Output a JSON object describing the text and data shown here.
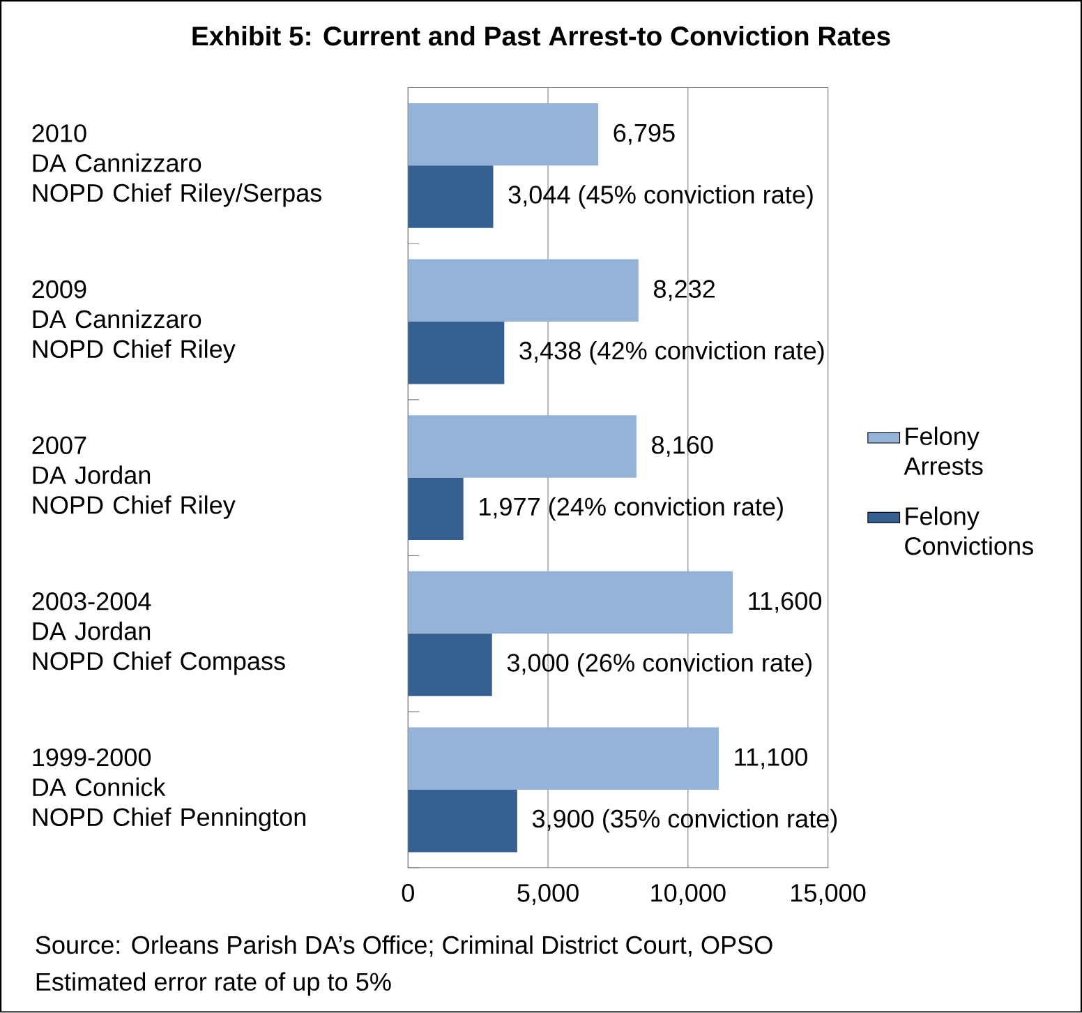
{
  "chart_data": {
    "type": "bar",
    "orientation": "horizontal",
    "title": "Exhibit 5: Current and Past Arrest-to Conviction Rates",
    "categories": [
      "2010\nDA Cannizzaro\nNOPD Chief Riley/Serpas",
      "2009\nDA Cannizzaro\nNOPD Chief Riley",
      "2007\nDA Jordan\nNOPD Chief Riley",
      "2003-2004\nDA Jordan\nNOPD Chief Compass",
      "1999-2000\nDA Connick\nNOPD Chief Pennington"
    ],
    "series": [
      {
        "name": "Felony Arrests",
        "color": "#95b3d7",
        "values": [
          6795,
          8232,
          8160,
          11600,
          11100
        ],
        "value_labels": [
          "6,795",
          "8,232",
          "8,160",
          "11,600",
          "11,100"
        ]
      },
      {
        "name": "Felony Convictions",
        "color": "#376092",
        "values": [
          3044,
          3438,
          1977,
          3000,
          3900
        ],
        "value_labels": [
          "3,044 (45% conviction rate)",
          "3,438 (42% conviction rate)",
          "1,977 (24% conviction rate)",
          "3,000 (26% conviction rate)",
          "3,900 (35% conviction rate)"
        ]
      }
    ],
    "xlim": [
      0,
      15000
    ],
    "xticks": [
      0,
      {
        "value": 5000,
        "label": "5,000"
      },
      {
        "value": 10000,
        "label": "10,000"
      },
      {
        "value": 15000,
        "label": "15,000"
      }
    ],
    "grid": "x",
    "legend": "right",
    "annotations": [
      "Source: Orleans Parish DA’s Office; Criminal District Court, OPSO",
      "Estimated error rate of up to 5%"
    ]
  }
}
